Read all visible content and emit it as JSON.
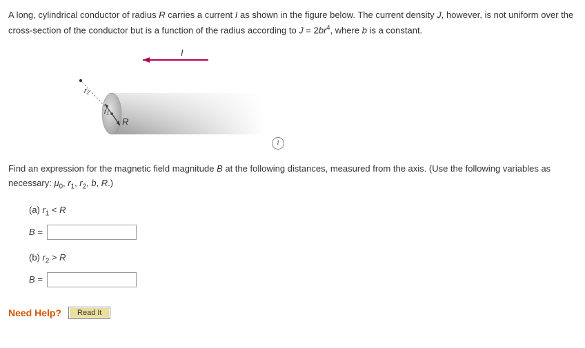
{
  "problem": {
    "text_html": "A long, cylindrical conductor of radius <i class='var'>R</i> carries a current <i class='var'>I</i> as shown in the figure below. The current density <i class='var'>J</i>, however, is not uniform over the cross-section of the conductor but is a function of the radius according to <i class='var'>J</i> = 2<i class='var'>br</i><sup>4</sup>, where <i class='var'>b</i> is a constant."
  },
  "figure": {
    "arrow_label": "I",
    "radius_label": "R",
    "r1_label": "r₁",
    "r2_label": "r₂",
    "colors": {
      "cylinder_light": "#d9d9d9",
      "cylinder_dark": "#a8a8a8",
      "cap": "#c2c2c2",
      "arrow": "#b30059",
      "text": "#333333",
      "sight_line": "#444444"
    },
    "info_icon": "i"
  },
  "question": {
    "intro_html": "Find an expression for the magnetic field magnitude <i class='var'>B</i> at the following distances, measured from the axis. (Use the following variables as necessary: <i class='var'>μ</i><sub>0</sub>, <i class='var'>r</i><sub>1</sub>, <i class='var'>r</i><sub>2</sub>, <i class='var'>b</i>, <i class='var'>R</i>.)",
    "parts": [
      {
        "id": "a",
        "label_html": "(a) <i class='var'>r</i><sub>1</sub> &lt; <i class='var'>R</i>",
        "lhs_html": "<i class='var'>B</i> =",
        "value": ""
      },
      {
        "id": "b",
        "label_html": "(b) <i class='var'>r</i><sub>2</sub> &gt; <i class='var'>R</i>",
        "lhs_html": "<i class='var'>B</i> =",
        "value": ""
      }
    ]
  },
  "help": {
    "label": "Need Help?",
    "read_it": "Read It"
  }
}
